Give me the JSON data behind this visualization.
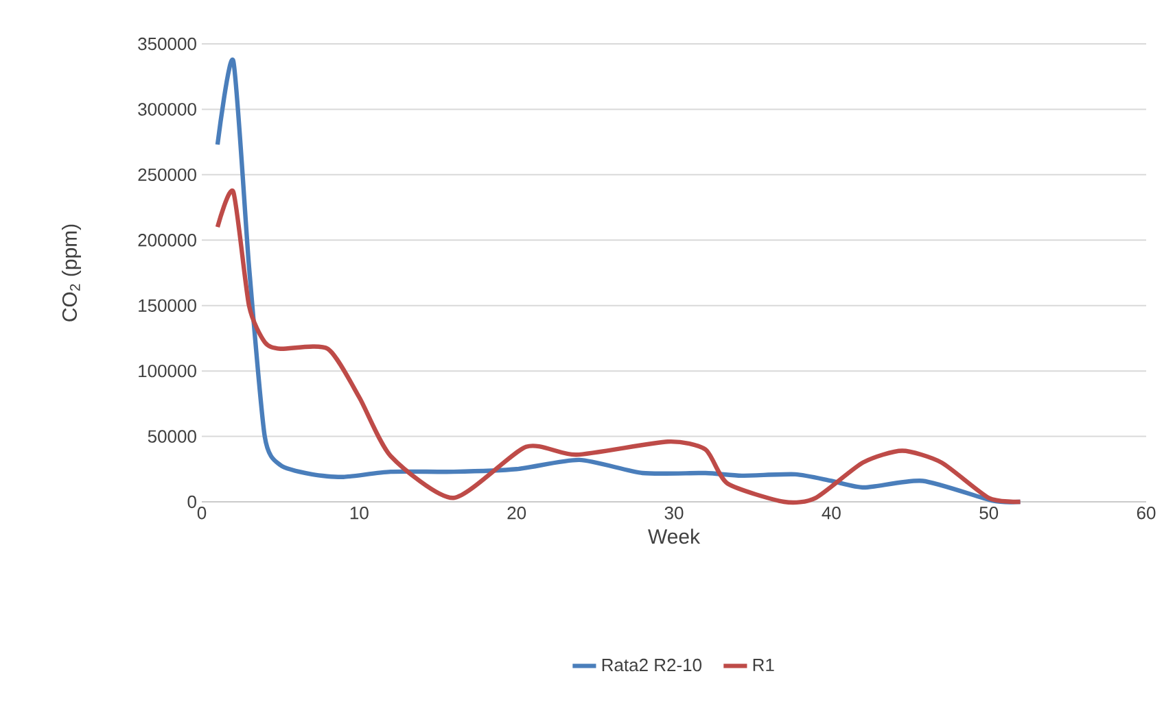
{
  "chart_data": {
    "type": "line",
    "xlabel": "Week",
    "ylabel": "CO$_{2}$ (ppm)",
    "xlim": [
      0,
      60
    ],
    "xticks": [
      0,
      10,
      20,
      30,
      40,
      50,
      60
    ],
    "ylim": [
      0,
      350000
    ],
    "yticks": [
      0,
      50000,
      100000,
      150000,
      200000,
      250000,
      300000,
      350000
    ],
    "grid": "y",
    "legend": "bottom",
    "marker": "none",
    "line_style": "solid",
    "series": [
      {
        "name": "Rata2 R2-10",
        "color": "#4a7ebb",
        "x": [
          1,
          2,
          3,
          4,
          5,
          7,
          9,
          12,
          16,
          20,
          24,
          28,
          32,
          34.3,
          37.7,
          40,
          42.1,
          45.8,
          50.2,
          52
        ],
        "values": [
          273000,
          337000,
          180000,
          50000,
          28000,
          21000,
          19000,
          23000,
          23000,
          25000,
          32000,
          22000,
          22000,
          20000,
          21000,
          16000,
          11000,
          16000,
          1000,
          0
        ]
      },
      {
        "name": "R1",
        "color": "#be4b48",
        "x": [
          1,
          2,
          3,
          4,
          5,
          8,
          10,
          12,
          16,
          20.6,
          23.8,
          29.6,
          32,
          33.4,
          37,
          39,
          42,
          44.5,
          47,
          50,
          52
        ],
        "values": [
          210000,
          237000,
          150000,
          122000,
          117000,
          117000,
          80000,
          35000,
          3000,
          42000,
          36000,
          46000,
          40000,
          14000,
          0,
          3000,
          30000,
          39000,
          30000,
          3000,
          0
        ]
      }
    ]
  }
}
